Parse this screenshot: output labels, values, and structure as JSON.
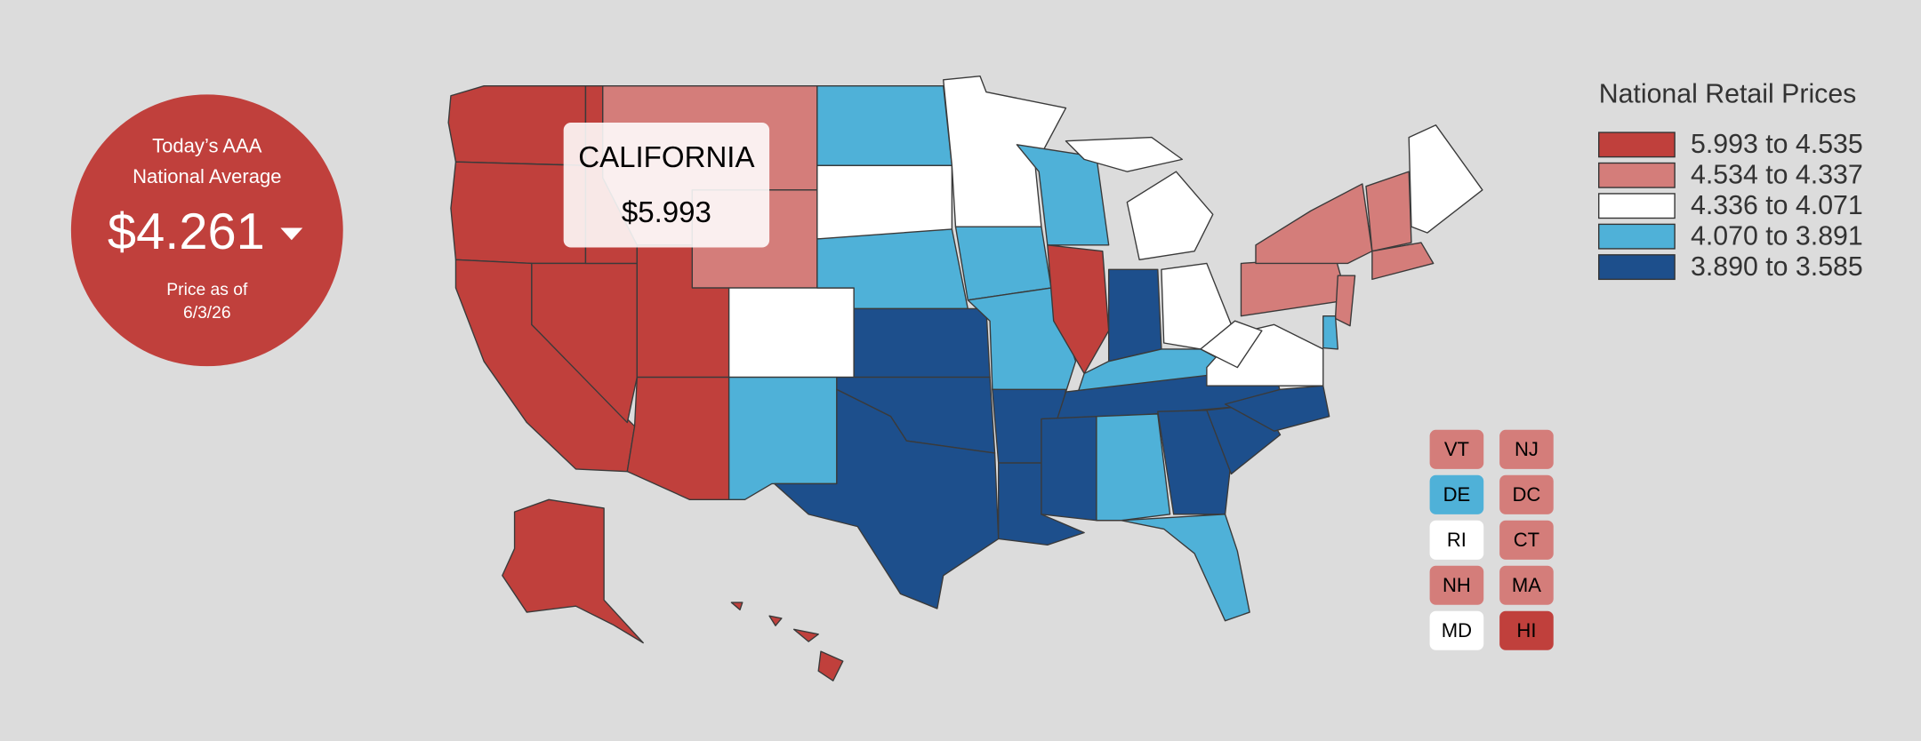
{
  "summary": {
    "title_lines": [
      "Today’s AAA",
      "National Average"
    ],
    "price": "$4.261",
    "date_caption": [
      "Price as of",
      "6/3/26"
    ]
  },
  "tooltip": {
    "state": "CALIFORNIA",
    "price": "$5.993"
  },
  "legend": {
    "title": "National Retail Prices",
    "items": [
      {
        "label": "5.993 to 4.535",
        "color": "#c0403c"
      },
      {
        "label": "4.534 to 4.337",
        "color": "#d47d7a"
      },
      {
        "label": "4.336 to 4.071",
        "color": "#ffffff"
      },
      {
        "label": "4.070 to 3.891",
        "color": "#4fb1d8"
      },
      {
        "label": "3.890 to 3.585",
        "color": "#1d4f8c"
      }
    ]
  },
  "small_states": [
    {
      "label": "VT",
      "color": "#d47d7a"
    },
    {
      "label": "NJ",
      "color": "#d47d7a"
    },
    {
      "label": "DE",
      "color": "#4fb1d8"
    },
    {
      "label": "DC",
      "color": "#d47d7a"
    },
    {
      "label": "RI",
      "color": "#ffffff"
    },
    {
      "label": "CT",
      "color": "#d47d7a"
    },
    {
      "label": "NH",
      "color": "#d47d7a"
    },
    {
      "label": "MA",
      "color": "#d47d7a"
    },
    {
      "label": "MD",
      "color": "#ffffff"
    },
    {
      "label": "HI",
      "color": "#c0403c"
    }
  ]
}
